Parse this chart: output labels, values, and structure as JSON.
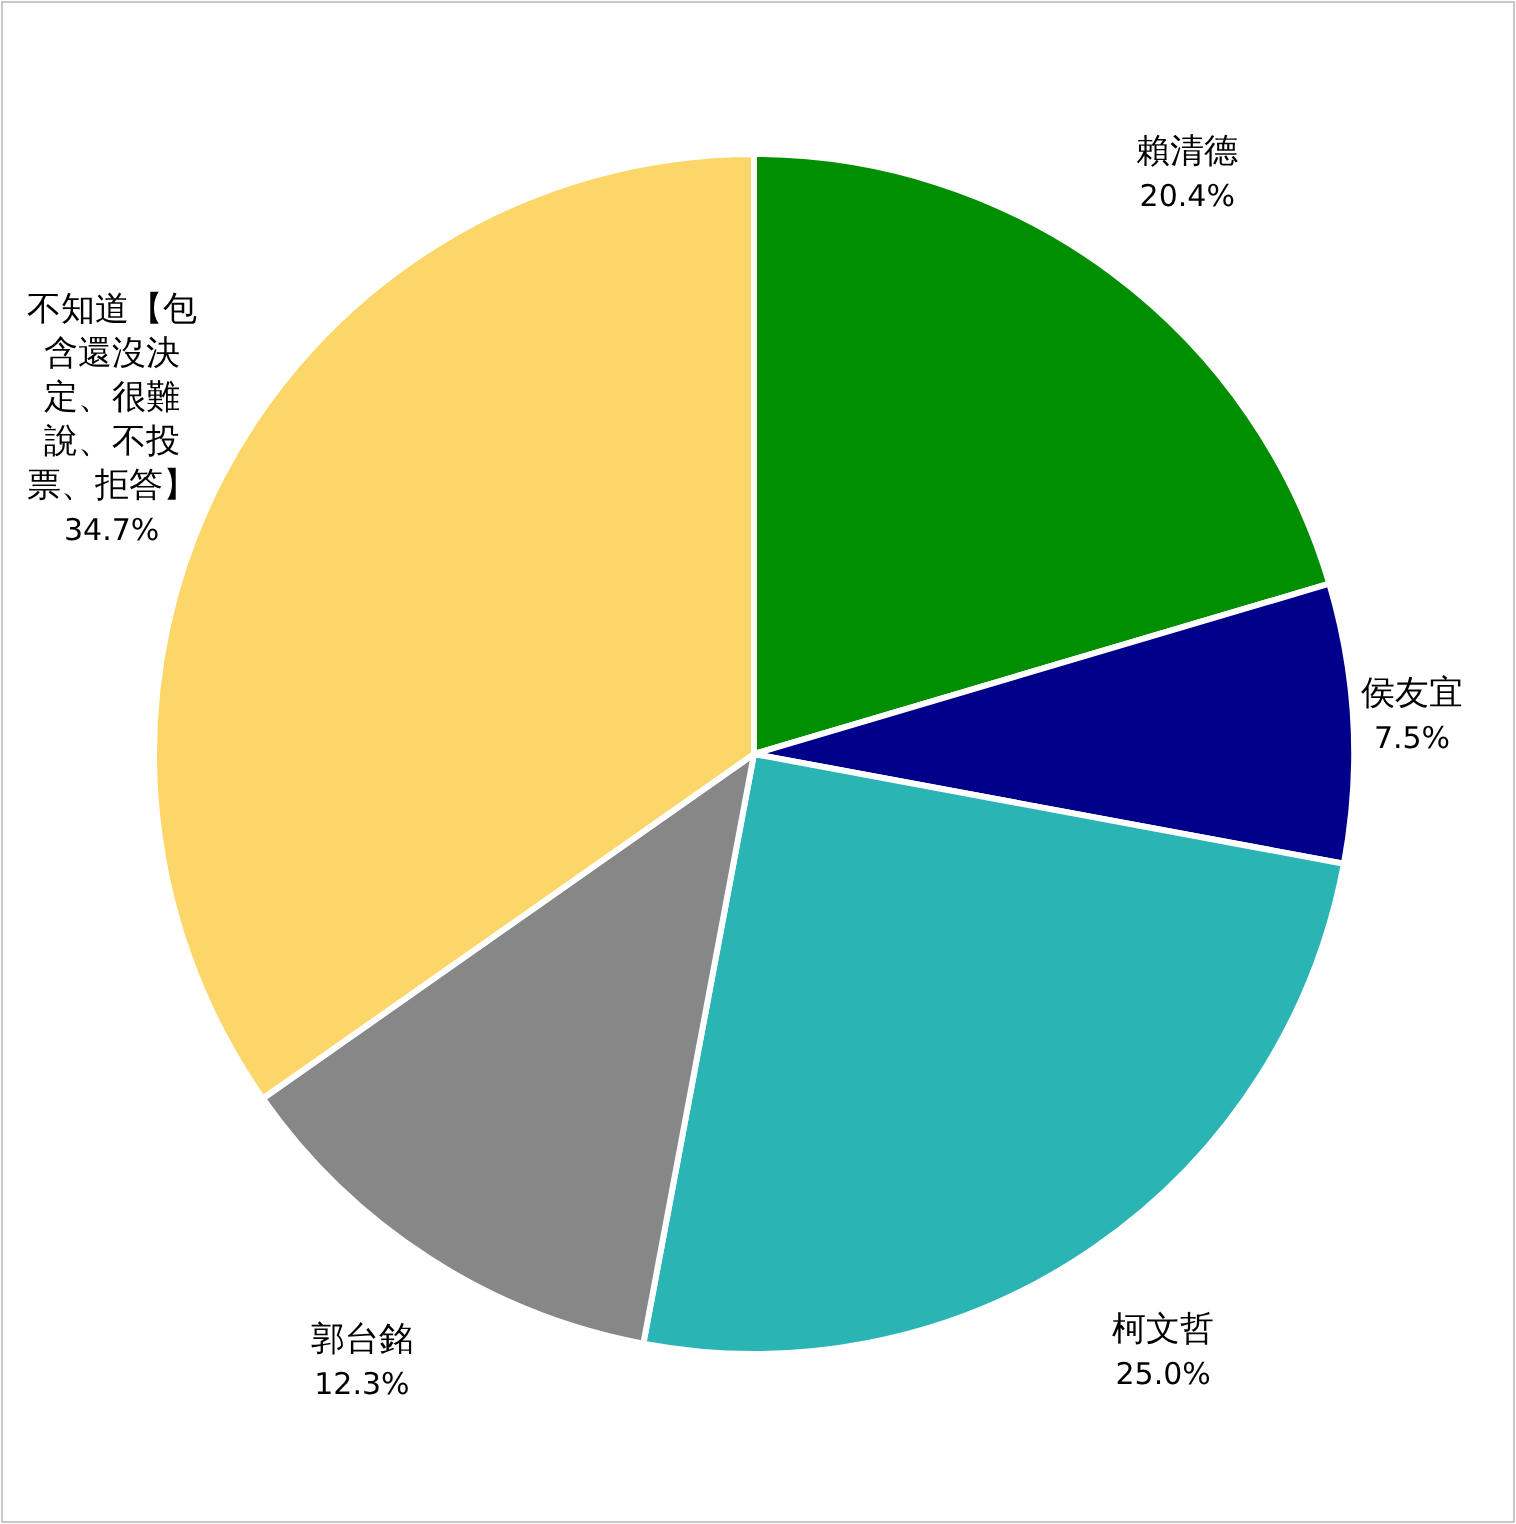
{
  "chart_data": {
    "type": "pie",
    "categories": [
      "賴清德",
      "侯友宜",
      "柯文哲",
      "郭台銘",
      "不知道【包含還沒決定、很難說、不投票、拒答】"
    ],
    "values": [
      20.4,
      7.5,
      25.0,
      12.3,
      34.7
    ],
    "value_labels": [
      "20.4%",
      "7.5%",
      "25.0%",
      "12.3%",
      "34.7%"
    ],
    "colors": [
      "#008f00",
      "#00008b",
      "#2bb4b4",
      "#878787",
      "#fdd669"
    ]
  }
}
